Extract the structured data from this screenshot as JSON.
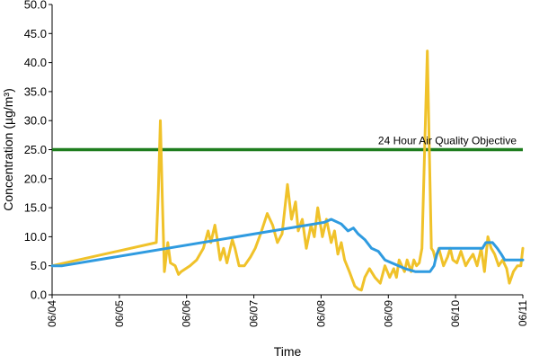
{
  "chart_data": {
    "type": "line",
    "title": "",
    "xlabel": "Time",
    "ylabel": "Concentration (µg/m³)",
    "ylim": [
      0,
      50
    ],
    "xlim": [
      0,
      7
    ],
    "x_tick_values": [
      0,
      1,
      2,
      3,
      4,
      5,
      6,
      7
    ],
    "x_tick_labels": [
      "06/04",
      "06/05",
      "06/06",
      "06/07",
      "06/08",
      "06/09",
      "06/10",
      "06/11"
    ],
    "y_tick_values": [
      0,
      5,
      10,
      15,
      20,
      25,
      30,
      35,
      40,
      45,
      50
    ],
    "y_tick_labels": [
      "0.0",
      "5.0",
      "10.0",
      "15.0",
      "20.0",
      "25.0",
      "30.0",
      "35.0",
      "40.0",
      "45.0",
      "50.0"
    ],
    "grid": false,
    "x_unit": "days from 06/04",
    "colors": {
      "series1": "#F0C22A",
      "series2": "#2F9BE0",
      "objective": "#1E7D1E"
    },
    "series": [
      {
        "color": "#F0C22A",
        "x": [
          0,
          1.55,
          1.58,
          1.61,
          1.64,
          1.67,
          1.72,
          1.76,
          1.83,
          1.88,
          1.92,
          2.05,
          2.15,
          2.25,
          2.32,
          2.36,
          2.42,
          2.45,
          2.5,
          2.55,
          2.6,
          2.68,
          2.72,
          2.78,
          2.86,
          2.95,
          3.02,
          3.1,
          3.2,
          3.28,
          3.35,
          3.42,
          3.5,
          3.56,
          3.62,
          3.66,
          3.72,
          3.78,
          3.85,
          3.9,
          3.95,
          4.02,
          4.08,
          4.15,
          4.2,
          4.25,
          4.3,
          4.35,
          4.42,
          4.5,
          4.55,
          4.6,
          4.65,
          4.72,
          4.8,
          4.88,
          4.95,
          5.02,
          5.08,
          5.12,
          5.16,
          5.2,
          5.24,
          5.28,
          5.34,
          5.38,
          5.42,
          5.46,
          5.5,
          5.54,
          5.58,
          5.61,
          5.64,
          5.67,
          5.7,
          5.75,
          5.82,
          5.88,
          5.92,
          5.96,
          6.02,
          6.08,
          6.15,
          6.2,
          6.26,
          6.32,
          6.38,
          6.43,
          6.48,
          6.53,
          6.58,
          6.64,
          6.7,
          6.76,
          6.8,
          6.86,
          6.92,
          6.97,
          7.0
        ],
        "y": [
          5,
          9,
          18,
          30,
          16,
          4,
          9,
          5.5,
          5,
          3.5,
          4,
          5,
          6,
          8,
          11,
          9,
          12,
          10,
          6,
          8,
          5.5,
          9.5,
          8,
          5,
          5,
          6.5,
          8,
          10.5,
          14,
          12,
          9,
          10.5,
          19,
          13,
          16,
          11,
          13,
          8,
          12,
          10,
          15,
          10,
          13,
          9,
          11,
          7,
          9,
          6,
          4,
          1.5,
          1,
          0.8,
          3,
          4.5,
          3,
          2,
          5,
          3,
          4.5,
          3,
          6,
          5,
          4,
          6,
          4,
          6,
          5,
          5.5,
          8,
          25,
          42,
          25,
          8,
          7.5,
          6,
          8,
          5,
          6.5,
          8,
          6,
          5.5,
          7.5,
          5,
          6,
          7,
          5,
          8,
          4,
          10,
          8,
          7,
          5,
          6,
          4.5,
          2,
          4,
          5,
          5,
          8
        ]
      },
      {
        "color": "#2F9BE0",
        "x": [
          0,
          0.15,
          4.05,
          4.15,
          4.3,
          4.4,
          4.48,
          4.55,
          4.65,
          4.75,
          4.85,
          4.95,
          5.05,
          5.25,
          5.4,
          5.62,
          5.68,
          5.72,
          5.76,
          6.4,
          6.45,
          6.55,
          6.62,
          6.68,
          6.73,
          7.0
        ],
        "y": [
          5,
          5,
          12.5,
          13,
          12.2,
          11,
          11.5,
          10.5,
          9.5,
          8,
          7.5,
          6,
          5.5,
          4.5,
          4,
          4,
          5,
          7,
          8,
          8,
          9,
          9,
          8,
          7,
          6,
          6
        ]
      }
    ],
    "objective": {
      "value": 25,
      "label": "24 Hour Air Quality Objective",
      "color": "#1E7D1E"
    }
  }
}
